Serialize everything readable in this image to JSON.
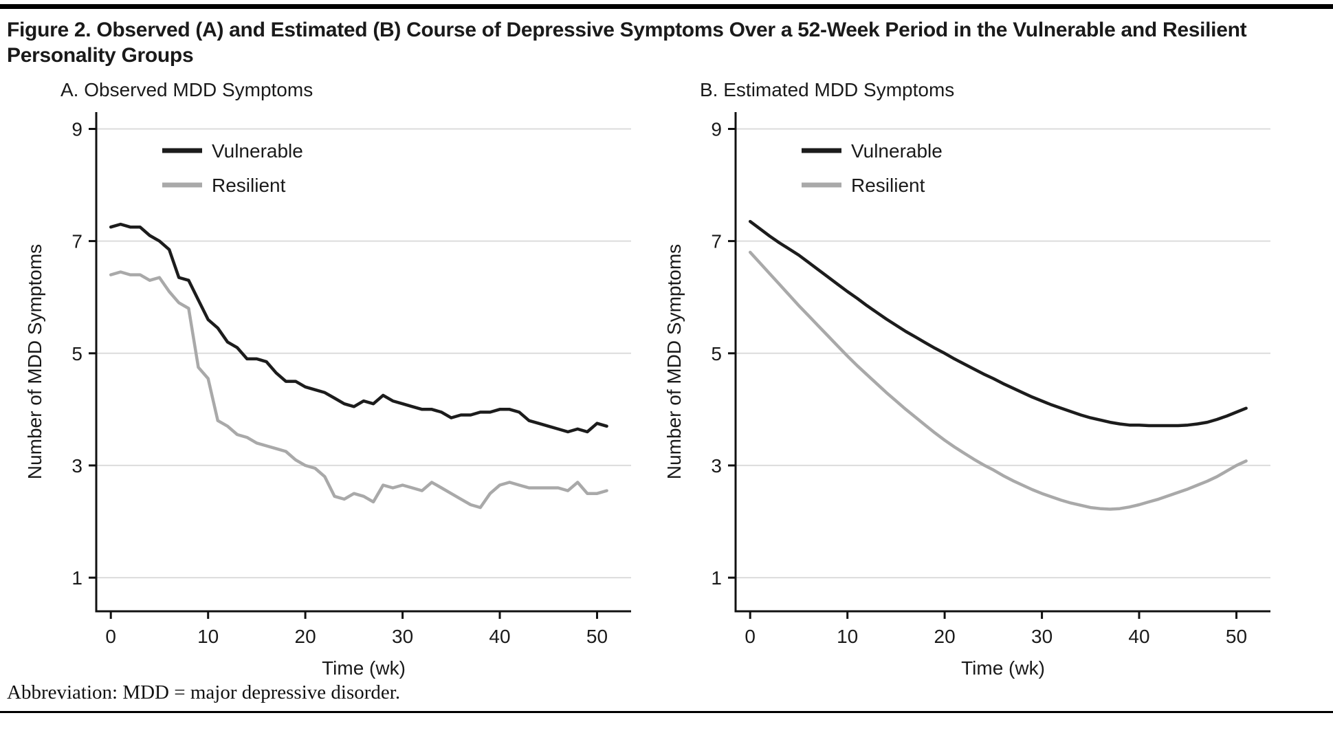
{
  "figure": {
    "title": "Figure 2. Observed (A) and Estimated (B) Course of Depressive Symptoms Over a 52-Week Period in the Vulnerable and Resilient Personality Groups",
    "footnote": "Abbreviation: MDD = major depressive disorder."
  },
  "panels": [
    {
      "label": "A. Observed MDD Symptoms"
    },
    {
      "label": "B. Estimated MDD Symptoms"
    }
  ],
  "style": {
    "axis_color": "#111111",
    "grid_color": "#dcdcdc",
    "text_color": "#1a1a1a",
    "vulnerable_color": "#1c1c1c",
    "resilient_color": "#a9a9a9",
    "rule_color": "#000000"
  },
  "chart_data": [
    {
      "type": "line",
      "title": "A. Observed MDD Symptoms",
      "xlabel": "Time (wk)",
      "ylabel": "Number of MDD Symptoms",
      "xlim": [
        -1.5,
        53.5
      ],
      "ylim": [
        0.4,
        9.3
      ],
      "xticks": [
        0,
        10,
        20,
        30,
        40,
        50
      ],
      "yticks": [
        1,
        3,
        5,
        7,
        9
      ],
      "grid": "horizontal",
      "legend_position": "top-left-inside",
      "x": [
        0,
        1,
        2,
        3,
        4,
        5,
        6,
        7,
        8,
        9,
        10,
        11,
        12,
        13,
        14,
        15,
        16,
        17,
        18,
        19,
        20,
        21,
        22,
        23,
        24,
        25,
        26,
        27,
        28,
        29,
        30,
        31,
        32,
        33,
        34,
        35,
        36,
        37,
        38,
        39,
        40,
        41,
        42,
        43,
        44,
        45,
        46,
        47,
        48,
        49,
        50,
        51
      ],
      "series": [
        {
          "name": "Vulnerable",
          "color": "#1c1c1c",
          "values": [
            7.25,
            7.3,
            7.25,
            7.25,
            7.1,
            7.0,
            6.85,
            6.35,
            6.3,
            5.95,
            5.6,
            5.45,
            5.2,
            5.1,
            4.9,
            4.9,
            4.85,
            4.65,
            4.5,
            4.5,
            4.4,
            4.35,
            4.3,
            4.2,
            4.1,
            4.05,
            4.15,
            4.1,
            4.25,
            4.15,
            4.1,
            4.05,
            4.0,
            4.0,
            3.95,
            3.85,
            3.9,
            3.9,
            3.95,
            3.95,
            4.0,
            4.0,
            3.95,
            3.8,
            3.75,
            3.7,
            3.65,
            3.6,
            3.65,
            3.6,
            3.75,
            3.7
          ]
        },
        {
          "name": "Resilient",
          "color": "#a9a9a9",
          "values": [
            6.4,
            6.45,
            6.4,
            6.4,
            6.3,
            6.35,
            6.1,
            5.9,
            5.8,
            4.75,
            4.55,
            3.8,
            3.7,
            3.55,
            3.5,
            3.4,
            3.35,
            3.3,
            3.25,
            3.1,
            3.0,
            2.95,
            2.8,
            2.45,
            2.4,
            2.5,
            2.45,
            2.35,
            2.65,
            2.6,
            2.65,
            2.6,
            2.55,
            2.7,
            2.6,
            2.5,
            2.4,
            2.3,
            2.25,
            2.5,
            2.65,
            2.7,
            2.65,
            2.6,
            2.6,
            2.6,
            2.6,
            2.55,
            2.7,
            2.5,
            2.5,
            2.55
          ]
        }
      ]
    },
    {
      "type": "line",
      "title": "B. Estimated MDD Symptoms",
      "xlabel": "Time (wk)",
      "ylabel": "Number of MDD Symptoms",
      "xlim": [
        -1.5,
        53.5
      ],
      "ylim": [
        0.4,
        9.3
      ],
      "xticks": [
        0,
        10,
        20,
        30,
        40,
        50
      ],
      "yticks": [
        1,
        3,
        5,
        7,
        9
      ],
      "grid": "horizontal",
      "legend_position": "top-left-inside",
      "x": [
        0,
        1,
        2,
        3,
        4,
        5,
        6,
        7,
        8,
        9,
        10,
        11,
        12,
        13,
        14,
        15,
        16,
        17,
        18,
        19,
        20,
        21,
        22,
        23,
        24,
        25,
        26,
        27,
        28,
        29,
        30,
        31,
        32,
        33,
        34,
        35,
        36,
        37,
        38,
        39,
        40,
        41,
        42,
        43,
        44,
        45,
        46,
        47,
        48,
        49,
        50,
        51
      ],
      "series": [
        {
          "name": "Vulnerable",
          "color": "#1c1c1c",
          "values": [
            7.35,
            7.22,
            7.09,
            6.97,
            6.86,
            6.75,
            6.62,
            6.49,
            6.36,
            6.23,
            6.1,
            5.98,
            5.85,
            5.73,
            5.61,
            5.5,
            5.39,
            5.29,
            5.19,
            5.09,
            5.0,
            4.9,
            4.81,
            4.72,
            4.63,
            4.55,
            4.46,
            4.38,
            4.3,
            4.22,
            4.15,
            4.08,
            4.02,
            3.96,
            3.9,
            3.85,
            3.81,
            3.77,
            3.74,
            3.72,
            3.72,
            3.71,
            3.71,
            3.71,
            3.71,
            3.72,
            3.74,
            3.77,
            3.82,
            3.88,
            3.95,
            4.02
          ]
        },
        {
          "name": "Resilient",
          "color": "#a9a9a9",
          "values": [
            6.8,
            6.61,
            6.42,
            6.23,
            6.04,
            5.85,
            5.67,
            5.49,
            5.31,
            5.13,
            4.95,
            4.78,
            4.62,
            4.46,
            4.3,
            4.15,
            4.0,
            3.86,
            3.72,
            3.58,
            3.45,
            3.33,
            3.22,
            3.11,
            3.01,
            2.92,
            2.82,
            2.73,
            2.65,
            2.57,
            2.5,
            2.44,
            2.38,
            2.33,
            2.29,
            2.25,
            2.23,
            2.22,
            2.23,
            2.26,
            2.3,
            2.35,
            2.4,
            2.46,
            2.52,
            2.58,
            2.65,
            2.72,
            2.8,
            2.9,
            3.0,
            3.08
          ]
        }
      ]
    }
  ]
}
